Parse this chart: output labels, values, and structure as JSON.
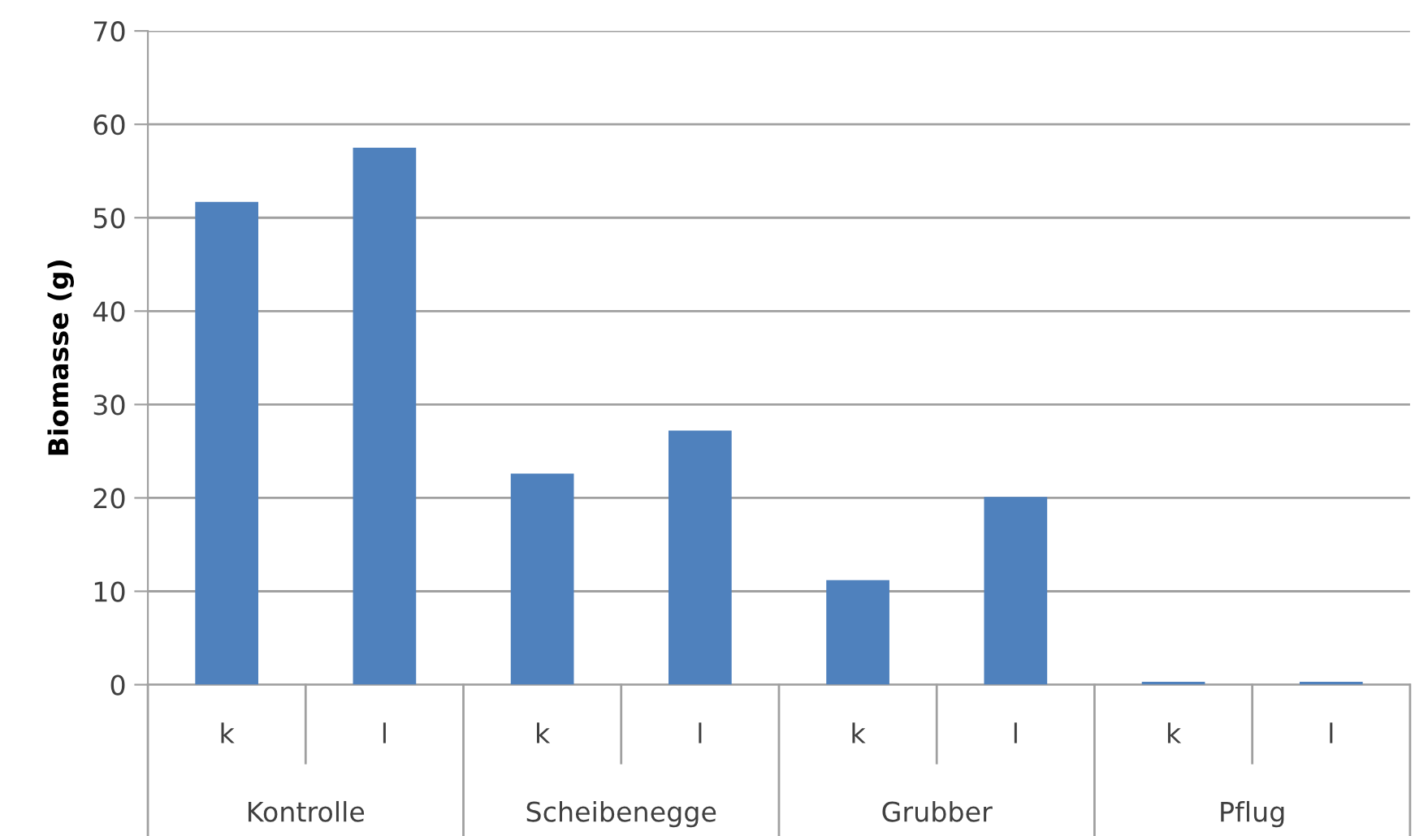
{
  "chart_data": {
    "type": "bar",
    "ylabel": "Biomasse (g)",
    "categories": [
      "k",
      "l",
      "k",
      "l",
      "k",
      "l",
      "k",
      "l"
    ],
    "values": [
      51.7,
      57.5,
      22.6,
      27.2,
      11.2,
      20.1,
      0.3,
      0.3
    ],
    "color": "#4f81bd",
    "ylim": [
      0,
      70
    ],
    "yticks": [
      0,
      10,
      20,
      30,
      40,
      50,
      60,
      70
    ],
    "grid": "y",
    "annotations": [
      "Kontrolle",
      "Scheibenegge",
      "Grubber",
      "Pflug"
    ]
  }
}
